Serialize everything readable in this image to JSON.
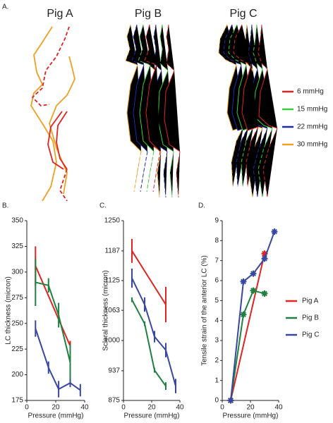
{
  "panel_a": {
    "label": "A.",
    "titles": [
      "Pig A",
      "Pig B",
      "Pig C"
    ],
    "legend": [
      {
        "label": "6 mmHg",
        "color": "#e02424"
      },
      {
        "label": "15 mmHg",
        "color": "#3ad03a"
      },
      {
        "label": "22 mmHg",
        "color": "#1f2aa8"
      },
      {
        "label": "30 mmHg",
        "color": "#f0a020"
      }
    ]
  },
  "chart_data": [
    {
      "type": "line",
      "panel_label": "B.",
      "xlabel": "Pressure (mmHg)",
      "ylabel": "LC thickness  (micron)",
      "xlim": [
        0,
        40
      ],
      "xticks": [
        0,
        20,
        40
      ],
      "ylim": [
        175,
        350
      ],
      "yticks": [
        175,
        200,
        225,
        250,
        275,
        300,
        325,
        350
      ],
      "series": [
        {
          "color": "#e02424",
          "x": [
            6,
            30
          ],
          "values": [
            306,
            228
          ],
          "errors": [
            19,
            5
          ]
        },
        {
          "color": "#208040",
          "x": [
            6,
            15,
            22,
            30
          ],
          "values": [
            290,
            287,
            258,
            212
          ],
          "errors": [
            23,
            7,
            12,
            18
          ]
        },
        {
          "color": "#3848a0",
          "x": [
            6,
            15,
            22,
            30,
            37
          ],
          "values": [
            245,
            207,
            186,
            192,
            185
          ],
          "errors": [
            8,
            6,
            8,
            4,
            6
          ]
        }
      ]
    },
    {
      "type": "line",
      "panel_label": "C.",
      "xlabel": "Pressure (mmHg)",
      "ylabel": "Scleral thickness (micron)",
      "xlim": [
        0,
        40
      ],
      "xticks": [
        0,
        20,
        40
      ],
      "ylim": [
        875,
        1250
      ],
      "yticks": [
        875,
        937,
        1000,
        1063,
        1125,
        1187,
        1250
      ],
      "series": [
        {
          "color": "#e02424",
          "x": [
            6,
            30
          ],
          "values": [
            1187,
            1075
          ],
          "errors": [
            25,
            37
          ]
        },
        {
          "color": "#208040",
          "x": [
            6,
            15,
            22,
            30
          ],
          "values": [
            1085,
            1035,
            938,
            905
          ],
          "errors": [
            5,
            5,
            5,
            8
          ]
        },
        {
          "color": "#3848a0",
          "x": [
            6,
            15,
            22,
            30,
            37
          ],
          "values": [
            1130,
            1075,
            1008,
            980,
            905
          ],
          "errors": [
            20,
            15,
            12,
            15,
            15
          ]
        }
      ]
    },
    {
      "type": "line",
      "panel_label": "D.",
      "xlabel": "Pressure (mmHg)",
      "ylabel": "Tensile strain of the anterior LC (%)",
      "xlim": [
        0,
        40
      ],
      "xticks": [
        0,
        20,
        40
      ],
      "ylim": [
        0,
        9
      ],
      "yticks": [
        0,
        1,
        2,
        3,
        4,
        5,
        6,
        7,
        8,
        9
      ],
      "marker": "star",
      "legend": "outside right",
      "series": [
        {
          "name": "Pig A",
          "color": "#e02424",
          "x": [
            6,
            30
          ],
          "values": [
            0,
            7.35
          ]
        },
        {
          "name": "Pig B",
          "color": "#208040",
          "x": [
            6,
            15,
            22,
            30
          ],
          "values": [
            0,
            4.3,
            5.5,
            5.35
          ]
        },
        {
          "name": "Pig C",
          "color": "#3848a0",
          "x": [
            6,
            15,
            22,
            30,
            37
          ],
          "values": [
            0,
            5.95,
            6.35,
            7.1,
            8.45
          ]
        }
      ]
    }
  ]
}
